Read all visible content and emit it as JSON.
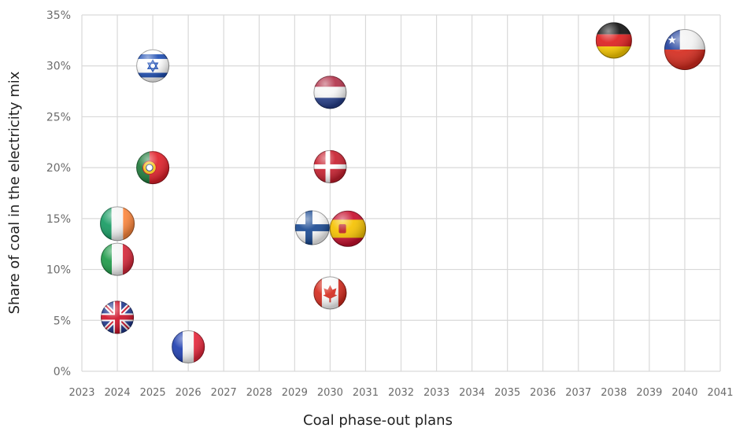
{
  "chart_data": {
    "type": "scatter",
    "title": "",
    "xlabel": "Coal phase-out plans",
    "ylabel": "Share of coal in the electricity mix",
    "xlim": [
      2023,
      2041
    ],
    "ylim": [
      0,
      35
    ],
    "x_ticks": [
      "2023",
      "2024",
      "2025",
      "2026",
      "2027",
      "2028",
      "2029",
      "2030",
      "2031",
      "2032",
      "2033",
      "2034",
      "2035",
      "2036",
      "2037",
      "2038",
      "2039",
      "2040",
      "2041"
    ],
    "y_ticks": [
      "0%",
      "5%",
      "10%",
      "15%",
      "20%",
      "25%",
      "30%",
      "35%"
    ],
    "grid": true,
    "legend": "none (markers are country flags)",
    "points": [
      {
        "country": "Israel",
        "x": 2025,
        "y": 30.0
      },
      {
        "country": "Portugal",
        "x": 2025,
        "y": 20.0
      },
      {
        "country": "Ireland",
        "x": 2024,
        "y": 14.5
      },
      {
        "country": "Italy",
        "x": 2024,
        "y": 11.0
      },
      {
        "country": "United Kingdom",
        "x": 2024,
        "y": 5.3
      },
      {
        "country": "France",
        "x": 2026,
        "y": 2.4
      },
      {
        "country": "Netherlands",
        "x": 2030,
        "y": 27.4
      },
      {
        "country": "Denmark",
        "x": 2030,
        "y": 20.1
      },
      {
        "country": "Finland",
        "x": 2029.5,
        "y": 14.1
      },
      {
        "country": "Spain",
        "x": 2030.5,
        "y": 14.0
      },
      {
        "country": "Canada",
        "x": 2030,
        "y": 7.7
      },
      {
        "country": "Germany",
        "x": 2038,
        "y": 32.5
      },
      {
        "country": "Chile",
        "x": 2040,
        "y": 31.6
      }
    ]
  }
}
